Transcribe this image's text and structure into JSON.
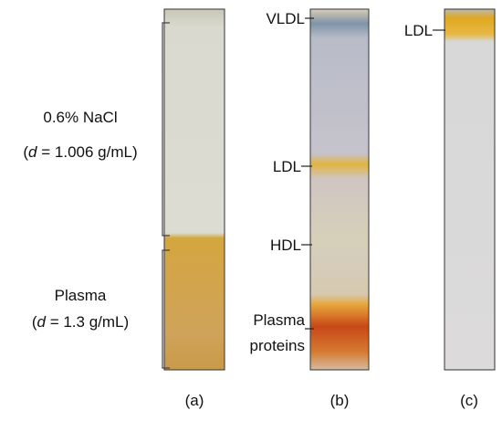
{
  "panels": [
    {
      "label": "(a)",
      "layers": [
        {
          "name": "0.6% NaCl",
          "density": {
            "open": "(",
            "symbol": "d",
            "rest": " = 1.006 g/mL)"
          }
        },
        {
          "name": "Plasma",
          "density": {
            "open": "(",
            "symbol": "d",
            "rest": " = 1.3 g/mL)"
          }
        }
      ]
    },
    {
      "label": "(b)",
      "bands": [
        "VLDL",
        "LDL",
        "HDL",
        {
          "line1": "Plasma",
          "line2": "proteins"
        }
      ]
    },
    {
      "label": "(c)",
      "bands": [
        "LDL"
      ]
    }
  ]
}
